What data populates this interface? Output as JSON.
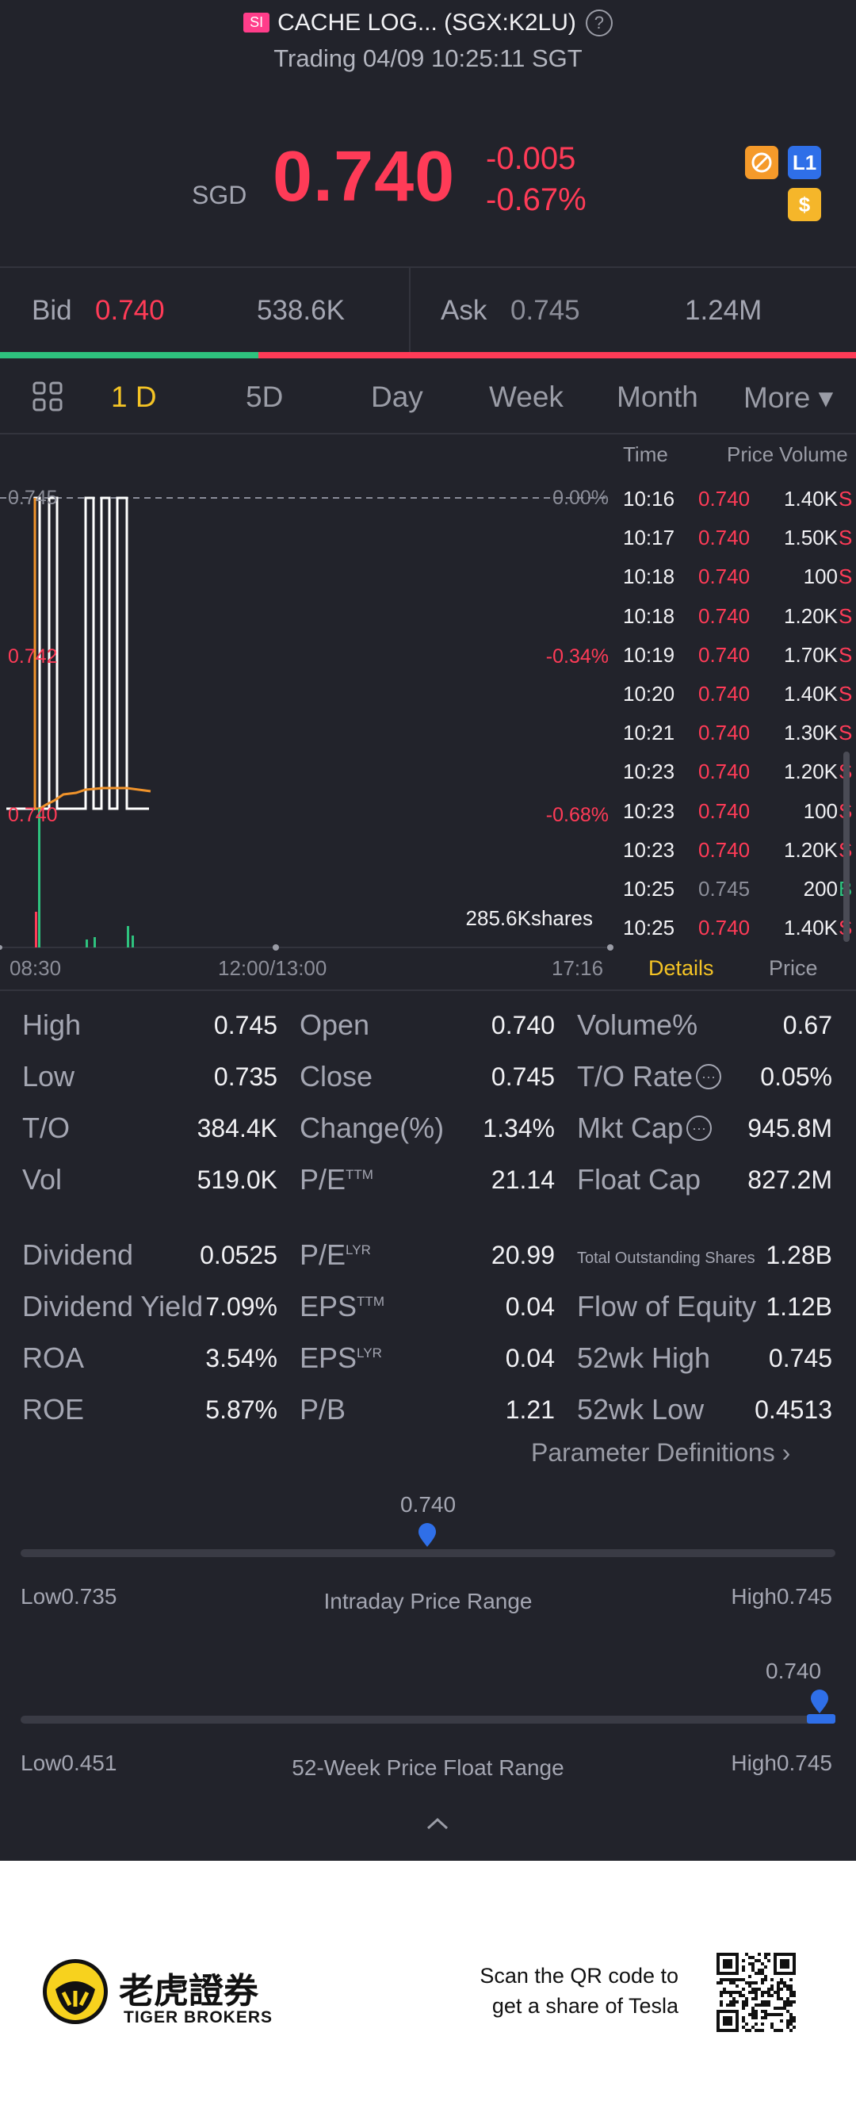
{
  "header": {
    "exchange_badge": "SI",
    "title": "CACHE LOG... (SGX:K2LU)",
    "help_icon": "?",
    "status": "Trading 04/09 10:25:11 SGT"
  },
  "quote": {
    "currency": "SGD",
    "price": "0.740",
    "change": "-0.005",
    "change_pct": "-0.67%",
    "badges": [
      "no-short-icon",
      "L1",
      "$"
    ],
    "badge_l1": "L1",
    "badge_dollar": "$"
  },
  "bidask": {
    "bid_label": "Bid",
    "bid_price": "0.740",
    "bid_size": "538.6K",
    "ask_label": "Ask",
    "ask_price": "0.745",
    "ask_size": "1.24M",
    "bid_ratio": 0.302
  },
  "tabs": {
    "t1": "1 D",
    "t2": "5D",
    "t3": "Day",
    "t4": "Week",
    "t5": "Month",
    "t6": "More ▾"
  },
  "chart": {
    "y_labels": [
      "0.745",
      "0.742",
      "0.740"
    ],
    "pct_labels": [
      "0.00%",
      "-0.34%",
      "-0.68%"
    ],
    "volume_label": "285.6Kshares",
    "x_labels": [
      "08:30",
      "12:00/13:00",
      "17:16"
    ]
  },
  "chart_data": {
    "type": "line",
    "ylim": [
      0.74,
      0.745
    ],
    "prev_close": 0.745
  },
  "trades": {
    "headers": [
      "Time",
      "Price",
      "Volume"
    ],
    "rows": [
      [
        "10:16",
        "0.740",
        "1.40K",
        "S"
      ],
      [
        "10:17",
        "0.740",
        "1.50K",
        "S"
      ],
      [
        "10:18",
        "0.740",
        "100",
        "S"
      ],
      [
        "10:18",
        "0.740",
        "1.20K",
        "S"
      ],
      [
        "10:19",
        "0.740",
        "1.70K",
        "S"
      ],
      [
        "10:20",
        "0.740",
        "1.40K",
        "S"
      ],
      [
        "10:21",
        "0.740",
        "1.30K",
        "S"
      ],
      [
        "10:23",
        "0.740",
        "1.20K",
        "S"
      ],
      [
        "10:23",
        "0.740",
        "100",
        "S"
      ],
      [
        "10:23",
        "0.740",
        "1.20K",
        "S"
      ],
      [
        "10:25",
        "0.745",
        "200",
        "B"
      ],
      [
        "10:25",
        "0.740",
        "1.40K",
        "S"
      ]
    ],
    "tab_details": "Details",
    "tab_price": "Price"
  },
  "stats": {
    "c1": [
      [
        "High",
        "0.745"
      ],
      [
        "Low",
        "0.735"
      ],
      [
        "T/O",
        "384.4K"
      ],
      [
        "Vol",
        "519.0K"
      ]
    ],
    "c2": [
      [
        "Open",
        "0.740"
      ],
      [
        "Close",
        "0.745"
      ],
      [
        "Change(%)",
        "1.34%"
      ],
      [
        "P/E",
        "21.14"
      ]
    ],
    "c3": [
      [
        "Volume%",
        "0.67"
      ],
      [
        "T/O Rate",
        "0.05%"
      ],
      [
        "Mkt Cap",
        "945.8M"
      ],
      [
        "Float Cap",
        "827.2M"
      ]
    ],
    "d1": [
      [
        "Dividend",
        "0.0525"
      ],
      [
        "Dividend Yield",
        "7.09%"
      ],
      [
        "ROA",
        "3.54%"
      ],
      [
        "ROE",
        "5.87%"
      ]
    ],
    "d2": [
      [
        "P/E",
        "20.99"
      ],
      [
        "EPS",
        "0.04"
      ],
      [
        "EPS",
        "0.04"
      ],
      [
        "P/B",
        "1.21"
      ]
    ],
    "d3": [
      [
        "Total Outstanding Shares",
        "1.28B"
      ],
      [
        "Flow of Equity",
        "1.12B"
      ],
      [
        "52wk High",
        "0.745"
      ],
      [
        "52wk Low",
        "0.4513"
      ]
    ],
    "sup_ttm": "TTM",
    "sup_lyr": "LYR",
    "param_def": "Parameter Definitions"
  },
  "ranges": {
    "intraday": {
      "current": "0.740",
      "title": "Intraday Price Range",
      "low": "Low0.735",
      "high": "High0.745",
      "position": 0.5
    },
    "week52": {
      "current": "0.740",
      "title": "52-Week Price Float Range",
      "low": "Low0.451",
      "high": "High0.745",
      "position": 0.98
    }
  },
  "footer": {
    "brand_cn": "老虎證券",
    "brand_en": "TIGER BROKERS",
    "cta_line1": "Scan the QR code to",
    "cta_line2": "get a share of Tesla"
  }
}
